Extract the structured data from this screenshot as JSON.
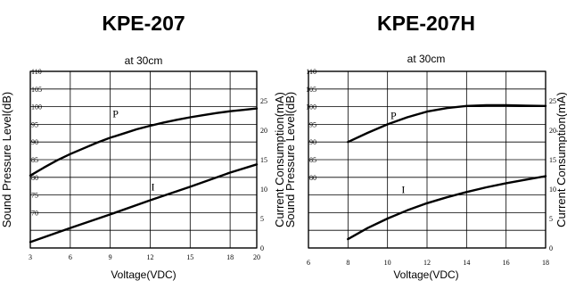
{
  "chart_data": [
    {
      "type": "line",
      "title": "KPE-207",
      "subtitle": "at 30cm",
      "xlabel": "Voltage(VDC)",
      "ylabel_left": "Sound Pressure Level(dB)",
      "ylabel_right": "Current Consumption(mA)",
      "xlim": [
        3,
        20
      ],
      "x_ticks": [
        "3",
        "6",
        "9",
        "12",
        "15",
        "18",
        "20"
      ],
      "x_tick_values": [
        3,
        6,
        9,
        12,
        15,
        18,
        20
      ],
      "ylim_left": [
        60,
        110
      ],
      "y_ticks_left": [
        "70",
        "75",
        "80",
        "85",
        "90",
        "95",
        "100",
        "105",
        "110"
      ],
      "y_tick_values_left": [
        70,
        75,
        80,
        85,
        90,
        95,
        100,
        105,
        110
      ],
      "ylim_right": [
        0,
        30
      ],
      "y_ticks_right": [
        "0",
        "5",
        "10",
        "15",
        "20",
        "25"
      ],
      "y_tick_values_right": [
        0,
        5,
        10,
        15,
        20,
        25
      ],
      "grid": true,
      "series": [
        {
          "name": "P",
          "axis": "left",
          "x": [
            3,
            4,
            5,
            6,
            7,
            8,
            9,
            10,
            11,
            12,
            13,
            14,
            15,
            16,
            17,
            18,
            19,
            20
          ],
          "y": [
            80.5,
            82.7,
            84.8,
            86.6,
            88.2,
            89.8,
            91.2,
            92.4,
            93.6,
            94.6,
            95.5,
            96.3,
            97.0,
            97.6,
            98.2,
            98.7,
            99.1,
            99.5
          ],
          "label_at": [
            9.4,
            97
          ]
        },
        {
          "name": "I",
          "axis": "right",
          "x": [
            3,
            6,
            9,
            12,
            15,
            18,
            20
          ],
          "y": [
            1.0,
            3.4,
            5.7,
            8.1,
            10.4,
            12.8,
            14.2
          ],
          "label_at": [
            12.2,
            9.8
          ]
        }
      ],
      "colors": {
        "curve": "#000000",
        "grid": "#000000"
      }
    },
    {
      "type": "line",
      "title": "KPE-207H",
      "subtitle": "at 30cm",
      "xlabel": "Voltage(VDC)",
      "ylabel_left": "Sound Pressure Level(dB)",
      "ylabel_right": "Current Consumption(mA)",
      "xlim": [
        6,
        18
      ],
      "x_ticks": [
        "6",
        "8",
        "10",
        "12",
        "14",
        "16",
        "18"
      ],
      "x_tick_values": [
        6,
        8,
        10,
        12,
        14,
        16,
        18
      ],
      "ylim_left": [
        60,
        110
      ],
      "y_ticks_left": [
        "80",
        "85",
        "90",
        "95",
        "100",
        "105",
        "110"
      ],
      "y_tick_values_left": [
        80,
        85,
        90,
        95,
        100,
        105,
        110
      ],
      "ylim_right": [
        0,
        30
      ],
      "y_ticks_right": [
        "0",
        "5",
        "10",
        "15",
        "20",
        "25"
      ],
      "y_tick_values_right": [
        0,
        5,
        10,
        15,
        20,
        25
      ],
      "grid": true,
      "series": [
        {
          "name": "P",
          "axis": "left",
          "x": [
            8,
            9,
            10,
            11,
            12,
            13,
            14,
            15,
            16,
            17,
            18
          ],
          "y": [
            90.0,
            92.6,
            95.0,
            97.0,
            98.6,
            99.6,
            100.2,
            100.4,
            100.4,
            100.3,
            100.2
          ],
          "label_at": [
            10.3,
            96.5
          ]
        },
        {
          "name": "I",
          "axis": "right",
          "x": [
            8,
            9,
            10,
            11,
            12,
            13,
            14,
            15,
            16,
            17,
            18
          ],
          "y": [
            1.5,
            3.4,
            5.0,
            6.4,
            7.6,
            8.6,
            9.5,
            10.3,
            11.0,
            11.6,
            12.2
          ],
          "label_at": [
            10.8,
            9.3
          ]
        }
      ],
      "colors": {
        "curve": "#000000",
        "grid": "#000000"
      }
    }
  ]
}
